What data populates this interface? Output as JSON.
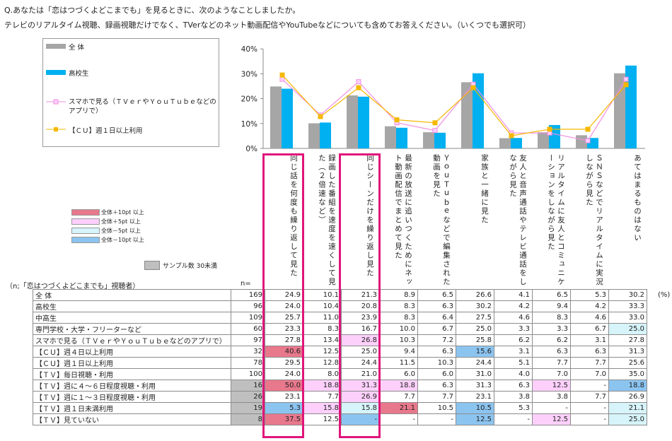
{
  "question": {
    "line1": "Q.あなたは「恋はつづくよどこまでも」を見るときに、次のようなことしましたか。",
    "line2": "テレビのリアルタイム視聴、録画視聴だけでなく、TVerなどのネット動画配信やYouTubeなどについても含めてお答えください。（いくつでも選択可）"
  },
  "legend": {
    "all": "全 体",
    "hs": "高校生",
    "smartphone": "スマホで見る（ＴＶｅｒやＹｏｕＴｕｂｅなどのアプリで）",
    "cu1": "【ＣＵ】週１日以上利用"
  },
  "color_legend": {
    "p10": "全体＋10pt 以上",
    "p5": "全体＋5pt 以上",
    "m5": "全体－5pt 以上",
    "m10": "全体－10pt 以上",
    "sample": "サンプル数 30未満"
  },
  "table_header": {
    "base": "（n;「恋はつづくよどこまでも」視聴者）",
    "n": "n=",
    "unit": "(%)"
  },
  "colors": {
    "gray": "#a6a6a6",
    "blue": "#00b0f0",
    "pink_line": "#f08ee0",
    "yellow_line": "#f5b800",
    "p10": "#e8788c",
    "p5": "#fdd0fb",
    "m5": "#d6f4fa",
    "m10": "#8cc4f0",
    "highlight": "#e0157a"
  },
  "chart_data": {
    "type": "bar",
    "categories": [
      "同じ話を何度も繰り返して見た",
      "録画した番組を速度を速くして見た（２倍速など）",
      "同じシーンだけを繰り返し見た",
      "最新の放送に追いつくためにネット動画配信でまとめて見た",
      "ＹｏｕＴｕｂｅなどで編集された動画を見た",
      "家族と一緒に見た",
      "友人と音声通話やテレビ通話をしながら見た",
      "リアルタイムに友人とコミュニケーションをしながら見た",
      "ＳＮＳなどでリアルタイムに実況しながら見た",
      "あてはまるものはない"
    ],
    "ylim": [
      0,
      40
    ],
    "yticks": [
      "0%",
      "10%",
      "20%",
      "30%",
      "40%"
    ],
    "series": [
      {
        "name": "全 体",
        "kind": "bar",
        "values": [
          24.9,
          10.1,
          21.3,
          8.9,
          6.5,
          26.6,
          4.1,
          6.5,
          5.3,
          30.2
        ]
      },
      {
        "name": "高校生",
        "kind": "bar",
        "values": [
          24.0,
          10.4,
          20.8,
          8.3,
          6.3,
          30.2,
          4.2,
          9.4,
          4.2,
          33.3
        ]
      },
      {
        "name": "スマホで見る（ＴＶｅｒやＹｏｕＴｕｂｅなどのアプリで）",
        "kind": "line",
        "values": [
          27.8,
          13.4,
          26.8,
          10.3,
          7.2,
          25.8,
          6.2,
          6.2,
          3.1,
          27.8
        ]
      },
      {
        "name": "【ＣＵ】週１日以上利用",
        "kind": "line",
        "values": [
          29.5,
          12.8,
          24.4,
          11.5,
          10.3,
          24.4,
          5.1,
          7.7,
          7.7,
          25.6
        ]
      }
    ],
    "table": [
      {
        "label": "全 体",
        "n": "169",
        "vals": [
          "24.9",
          "10.1",
          "21.3",
          "8.9",
          "6.5",
          "26.6",
          "4.1",
          "6.5",
          "5.3",
          "30.2"
        ],
        "hl": [
          "",
          "",
          "",
          "",
          "",
          "",
          "",
          "",
          "",
          ""
        ]
      },
      {
        "label": "高校生",
        "n": "96",
        "vals": [
          "24.0",
          "10.4",
          "20.8",
          "8.3",
          "6.3",
          "30.2",
          "4.2",
          "9.4",
          "4.2",
          "33.3"
        ],
        "hl": [
          "",
          "",
          "",
          "",
          "",
          "",
          "",
          "",
          "",
          ""
        ]
      },
      {
        "label": "中高生",
        "n": "109",
        "vals": [
          "25.7",
          "11.0",
          "23.9",
          "8.3",
          "6.4",
          "27.5",
          "4.6",
          "8.3",
          "4.6",
          "33.0"
        ],
        "hl": [
          "",
          "",
          "",
          "",
          "",
          "",
          "",
          "",
          "",
          ""
        ]
      },
      {
        "label": "専門学校・大学・フリーターなど",
        "n": "60",
        "vals": [
          "23.3",
          "8.3",
          "16.7",
          "10.0",
          "6.7",
          "25.0",
          "3.3",
          "3.3",
          "6.7",
          "25.0"
        ],
        "hl": [
          "",
          "",
          "",
          "",
          "",
          "",
          "",
          "",
          "",
          "m5"
        ]
      },
      {
        "label": "スマホで見る（ＴＶｅｒやＹｏｕＴｕｂｅなどのアプリで）",
        "n": "97",
        "vals": [
          "27.8",
          "13.4",
          "26.8",
          "10.3",
          "7.2",
          "25.8",
          "6.2",
          "6.2",
          "3.1",
          "27.8"
        ],
        "hl": [
          "",
          "",
          "p5",
          "",
          "",
          "",
          "",
          "",
          "",
          ""
        ]
      },
      {
        "label": "【ＣＵ】週４日以上利用",
        "n": "32",
        "vals": [
          "40.6",
          "12.5",
          "25.0",
          "9.4",
          "6.3",
          "15.6",
          "3.1",
          "6.3",
          "6.3",
          "31.3"
        ],
        "hl": [
          "p10",
          "",
          "",
          "",
          "",
          "m10",
          "",
          "",
          "",
          ""
        ]
      },
      {
        "label": "【ＣＵ】週１日以上利用",
        "n": "78",
        "vals": [
          "29.5",
          "12.8",
          "24.4",
          "11.5",
          "10.3",
          "24.4",
          "5.1",
          "7.7",
          "7.7",
          "25.6"
        ],
        "hl": [
          "",
          "",
          "",
          "",
          "",
          "",
          "",
          "",
          "",
          ""
        ]
      },
      {
        "label": "【ＴＶ】毎日視聴・利用",
        "n": "100",
        "vals": [
          "24.0",
          "8.0",
          "21.0",
          "6.0",
          "6.0",
          "31.0",
          "4.0",
          "7.0",
          "7.0",
          "35.0"
        ],
        "hl": [
          "",
          "",
          "",
          "",
          "",
          "",
          "",
          "",
          "",
          ""
        ]
      },
      {
        "label": "【ＴＶ】週に４～６日程度視聴・利用",
        "n": "16",
        "vals": [
          "50.0",
          "18.8",
          "31.3",
          "18.8",
          "6.3",
          "31.3",
          "6.3",
          "12.5",
          "-",
          "18.8"
        ],
        "hl": [
          "p10",
          "p5",
          "p5",
          "p5",
          "",
          "",
          "",
          "p5",
          "",
          "m10"
        ],
        "small": true
      },
      {
        "label": "【ＴＶ】週に１～３日程度視聴・利用",
        "n": "26",
        "vals": [
          "23.1",
          "7.7",
          "26.9",
          "7.7",
          "7.7",
          "23.1",
          "3.8",
          "3.8",
          "7.7",
          "26.9"
        ],
        "hl": [
          "",
          "",
          "p5",
          "",
          "",
          "",
          "",
          "",
          "",
          ""
        ],
        "small": true
      },
      {
        "label": "【ＴＶ】週１日未満利用",
        "n": "19",
        "vals": [
          "5.3",
          "15.8",
          "15.8",
          "21.1",
          "10.5",
          "10.5",
          "5.3",
          "-",
          "-",
          "21.1"
        ],
        "hl": [
          "m10",
          "p5",
          "m5",
          "p10",
          "",
          "m10",
          "",
          "",
          "",
          "m5"
        ],
        "small": true
      },
      {
        "label": "【ＴＶ】見ていない",
        "n": "8",
        "vals": [
          "37.5",
          "12.5",
          "-",
          "-",
          "-",
          "12.5",
          "-",
          "12.5",
          "-",
          "25.0"
        ],
        "hl": [
          "p10",
          "",
          "m10",
          "",
          "",
          "m10",
          "",
          "p5",
          "",
          "m5"
        ],
        "small": true
      }
    ]
  }
}
